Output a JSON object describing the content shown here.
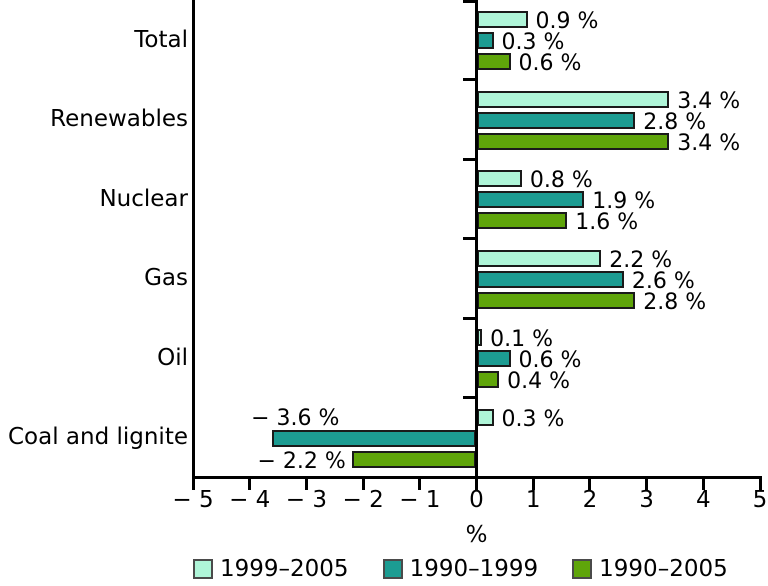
{
  "chart_data": {
    "type": "bar",
    "orientation": "horizontal",
    "title": "",
    "categories": [
      "Total",
      "Renewables",
      "Nuclear",
      "Gas",
      "Oil",
      "Coal and lignite"
    ],
    "series": [
      {
        "name": "1999–2005",
        "color": "#aff5d8",
        "values": [
          0.9,
          3.4,
          0.8,
          2.2,
          0.1,
          0.3
        ],
        "labels": [
          "0.9 %",
          "3.4 %",
          "0.8 %",
          "2.2 %",
          "0.1 %",
          "0.3 %"
        ]
      },
      {
        "name": "1990–1999",
        "color": "#1c9c92",
        "values": [
          0.3,
          2.8,
          1.9,
          2.6,
          0.6,
          -3.6
        ],
        "labels": [
          "0.3 %",
          "2.8 %",
          "1.9 %",
          "2.6 %",
          "0.6 %",
          "− 3.6 %"
        ]
      },
      {
        "name": "1990–2005",
        "color": "#5fa50a",
        "values": [
          0.6,
          3.4,
          1.6,
          2.8,
          0.4,
          -2.2
        ],
        "labels": [
          "0.6 %",
          "3.4 %",
          "1.6 %",
          "2.8 %",
          "0.4 %",
          "− 2.2 %"
        ]
      }
    ],
    "xlabel": "%",
    "xlim": [
      -5,
      5
    ],
    "x_ticks": [
      -5,
      -4,
      -3,
      -2,
      -1,
      0,
      1,
      2,
      3,
      4,
      5
    ],
    "x_tick_labels": [
      "− 5",
      "− 4",
      "− 3",
      "− 2",
      "− 1",
      "0",
      "1",
      "2",
      "3",
      "4",
      "5"
    ],
    "grid": false,
    "legend_position": "bottom",
    "bar_outline_color": "#1a1a1a",
    "axis_color": "#000000"
  }
}
